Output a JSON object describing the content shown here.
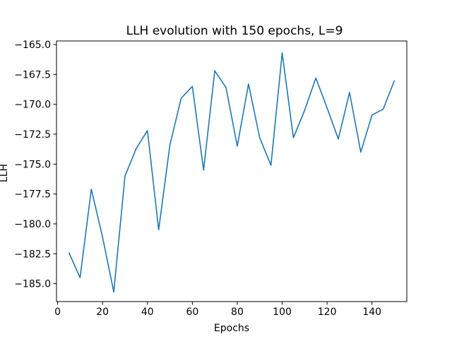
{
  "chart_data": {
    "type": "line",
    "title": "LLH evolution with 150 epochs, L=9",
    "xlabel": "Epochs",
    "ylabel": "LLH",
    "xlim": [
      -0.5,
      155.5
    ],
    "ylim": [
      -186.5,
      -164.7
    ],
    "xticks": [
      0,
      20,
      40,
      60,
      80,
      100,
      120,
      140
    ],
    "yticks": [
      -165.0,
      -167.5,
      -170.0,
      -172.5,
      -175.0,
      -177.5,
      -180.0,
      -182.5,
      -185.0
    ],
    "ytick_labels": [
      "−165.0",
      "−167.5",
      "−170.0",
      "−172.5",
      "−175.0",
      "−177.5",
      "−180.0",
      "−182.5",
      "−185.0"
    ],
    "grid": false,
    "color": "#1f77b4",
    "series": [
      {
        "x": [
          5,
          10,
          15,
          20,
          25,
          30,
          35,
          40,
          45,
          50,
          55,
          60,
          65,
          70,
          75,
          80,
          85,
          90,
          95,
          100,
          105,
          110,
          115,
          120,
          125,
          130,
          135,
          140,
          145,
          150
        ],
        "values": [
          -182.4,
          -184.5,
          -177.1,
          -181.1,
          -185.7,
          -176.0,
          -173.7,
          -172.2,
          -180.5,
          -173.4,
          -169.5,
          -168.5,
          -175.5,
          -167.2,
          -168.6,
          -173.5,
          -168.3,
          -172.8,
          -175.1,
          -165.7,
          -172.8,
          -170.5,
          -167.8,
          -170.3,
          -172.9,
          -169.0,
          -174.0,
          -170.9,
          -170.4,
          -168.0
        ]
      }
    ]
  }
}
